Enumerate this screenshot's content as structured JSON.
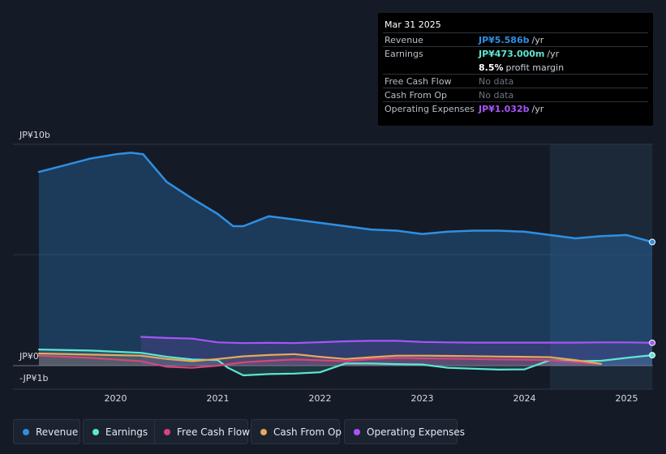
{
  "tooltip": {
    "date": "Mar 31 2025",
    "rows": [
      {
        "key": "Revenue",
        "value": "JP¥5.586b",
        "unit": "/yr"
      },
      {
        "key": "Earnings",
        "value": "JP¥473.000m",
        "unit": "/yr"
      },
      {
        "key": "",
        "value": "8.5%",
        "unit": "profit margin"
      },
      {
        "key": "Free Cash Flow",
        "value": "No data",
        "unit": ""
      },
      {
        "key": "Cash From Op",
        "value": "No data",
        "unit": ""
      },
      {
        "key": "Operating Expenses",
        "value": "JP¥1.032b",
        "unit": "/yr"
      }
    ]
  },
  "legend": [
    {
      "label": "Revenue",
      "color": "#2f8fe3"
    },
    {
      "label": "Earnings",
      "color": "#5ee6d2"
    },
    {
      "label": "Free Cash Flow",
      "color": "#d6457b"
    },
    {
      "label": "Cash From Op",
      "color": "#e8a85a"
    },
    {
      "label": "Operating Expenses",
      "color": "#a855f7"
    }
  ],
  "chart_data": {
    "type": "area",
    "title": "",
    "xlabel": "",
    "ylabel": "",
    "y_tick_labels": [
      "JP¥10b",
      "JP¥0",
      "-JP¥1b"
    ],
    "x_tick_labels": [
      "2020",
      "2021",
      "2022",
      "2023",
      "2024",
      "2025"
    ],
    "xlim": [
      2019.25,
      2025.25
    ],
    "ylim": [
      -1,
      10
    ],
    "forecast_shade_from": 2024.25,
    "series": [
      {
        "name": "Revenue",
        "color": "#2f8fe3",
        "x": [
          2019.25,
          2019.5,
          2019.75,
          2020.0,
          2020.15,
          2020.27,
          2020.5,
          2020.75,
          2021.0,
          2021.15,
          2021.25,
          2021.5,
          2021.75,
          2022.0,
          2022.25,
          2022.5,
          2022.75,
          2023.0,
          2023.25,
          2023.5,
          2023.75,
          2024.0,
          2024.25,
          2024.5,
          2024.75,
          2025.0,
          2025.25
        ],
        "values": [
          8.75,
          9.05,
          9.35,
          9.55,
          9.62,
          9.55,
          8.3,
          7.55,
          6.85,
          6.3,
          6.3,
          6.75,
          6.6,
          6.45,
          6.3,
          6.15,
          6.1,
          5.95,
          6.05,
          6.1,
          6.1,
          6.05,
          5.9,
          5.75,
          5.85,
          5.9,
          5.586
        ]
      },
      {
        "name": "Earnings",
        "color": "#5ee6d2",
        "x": [
          2019.25,
          2019.75,
          2020.25,
          2020.5,
          2020.75,
          2021.0,
          2021.1,
          2021.25,
          2021.5,
          2021.75,
          2022.0,
          2022.25,
          2022.5,
          2022.75,
          2023.0,
          2023.25,
          2023.5,
          2023.75,
          2024.0,
          2024.25,
          2024.5,
          2024.75,
          2025.0,
          2025.25
        ],
        "values": [
          0.73,
          0.68,
          0.58,
          0.4,
          0.28,
          0.25,
          -0.1,
          -0.44,
          -0.38,
          -0.36,
          -0.3,
          0.1,
          0.1,
          0.07,
          0.05,
          -0.1,
          -0.14,
          -0.18,
          -0.17,
          0.25,
          0.2,
          0.22,
          0.35,
          0.473
        ]
      },
      {
        "name": "Free Cash Flow",
        "color": "#d6457b",
        "x": [
          2019.25,
          2019.75,
          2020.25,
          2020.5,
          2020.75,
          2021.0,
          2021.25,
          2021.5,
          2021.75,
          2022.0,
          2022.25,
          2022.5,
          2022.75,
          2023.0,
          2023.25,
          2023.5,
          2023.75,
          2024.0,
          2024.25,
          2024.5,
          2024.75
        ],
        "values": [
          0.45,
          0.35,
          0.2,
          -0.05,
          -0.1,
          0.0,
          0.15,
          0.22,
          0.28,
          0.24,
          0.2,
          0.3,
          0.35,
          0.33,
          0.32,
          0.3,
          0.28,
          0.27,
          0.25,
          0.15,
          0.08
        ]
      },
      {
        "name": "Cash From Op",
        "color": "#e8a85a",
        "x": [
          2019.25,
          2019.75,
          2020.25,
          2020.5,
          2020.75,
          2021.0,
          2021.25,
          2021.5,
          2021.75,
          2022.0,
          2022.25,
          2022.5,
          2022.75,
          2023.0,
          2023.25,
          2023.5,
          2023.75,
          2024.0,
          2024.25,
          2024.5,
          2024.75
        ],
        "values": [
          0.55,
          0.5,
          0.45,
          0.3,
          0.2,
          0.3,
          0.42,
          0.48,
          0.52,
          0.4,
          0.3,
          0.38,
          0.45,
          0.45,
          0.44,
          0.43,
          0.41,
          0.4,
          0.38,
          0.25,
          0.08
        ]
      },
      {
        "name": "Operating Expenses",
        "color": "#a855f7",
        "x": [
          2020.25,
          2020.5,
          2020.75,
          2021.0,
          2021.25,
          2021.5,
          2021.75,
          2022.0,
          2022.25,
          2022.5,
          2022.75,
          2023.0,
          2023.25,
          2023.5,
          2023.75,
          2024.0,
          2024.25,
          2024.5,
          2024.75,
          2025.0,
          2025.25
        ],
        "values": [
          1.3,
          1.25,
          1.22,
          1.05,
          1.02,
          1.03,
          1.02,
          1.06,
          1.1,
          1.12,
          1.12,
          1.07,
          1.05,
          1.04,
          1.04,
          1.04,
          1.04,
          1.04,
          1.05,
          1.05,
          1.032
        ]
      }
    ]
  }
}
